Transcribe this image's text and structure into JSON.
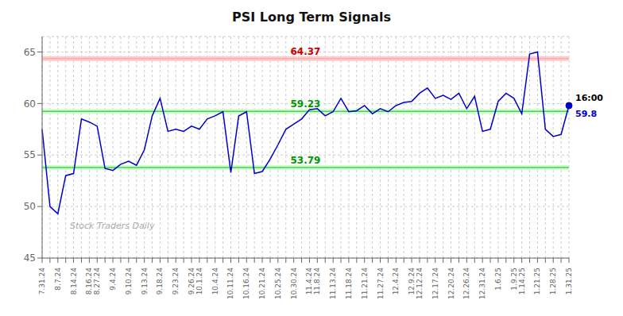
{
  "chart_data": {
    "type": "line",
    "title": "PSI Long Term Signals",
    "watermark": "Stock Traders Daily",
    "color": "#0000cc",
    "grid": true,
    "ylim": [
      45,
      66.5
    ],
    "yticks": [
      45,
      50,
      55,
      60,
      65
    ],
    "categories": [
      "7.31.24",
      null,
      "8.7.24",
      null,
      "8.14.24",
      null,
      "8.16.24",
      "8.27.24",
      null,
      "9.4.24",
      null,
      "9.10.24",
      null,
      "9.13.24",
      null,
      "9.18.24",
      null,
      "9.23.24",
      null,
      "9.26.24",
      "10.1.24",
      null,
      "10.4.24",
      null,
      "10.11.24",
      null,
      "10.16.24",
      null,
      "10.21.24",
      null,
      "10.25.24",
      null,
      "10.30.24",
      null,
      "11.4.24",
      "11.8.24",
      null,
      "11.13.24",
      null,
      "11.18.24",
      null,
      "11.21.24",
      null,
      "11.27.24",
      null,
      "12.4.24",
      null,
      "12.9.24",
      "12.12.24",
      null,
      "12.17.24",
      null,
      "12.20.24",
      null,
      "12.26.24",
      null,
      "12.31.24",
      null,
      "1.6.25",
      null,
      "1.9.25",
      "1.14.25",
      null,
      "1.21.25",
      null,
      "1.28.25",
      null,
      "1.31.25"
    ],
    "values": [
      57.5,
      50.0,
      49.3,
      53.0,
      53.2,
      58.5,
      58.2,
      57.8,
      53.7,
      53.5,
      54.1,
      54.4,
      54.0,
      55.5,
      58.8,
      60.5,
      57.3,
      57.5,
      57.3,
      57.8,
      57.5,
      58.5,
      58.8,
      59.2,
      53.3,
      58.79,
      59.2,
      53.2,
      53.4,
      54.6,
      56.0,
      57.5,
      58.0,
      58.5,
      59.4,
      59.5,
      58.8,
      59.2,
      60.5,
      59.2,
      59.3,
      59.8,
      59.0,
      59.5,
      59.2,
      59.8,
      60.1,
      60.2,
      61.0,
      61.5,
      60.5,
      60.8,
      60.4,
      61.0,
      59.5,
      60.7,
      57.3,
      57.5,
      60.2,
      61.0,
      60.5,
      59.0,
      64.8,
      65.0,
      57.5,
      56.8,
      57.0,
      59.8
    ],
    "reference_lines": [
      {
        "value": 64.37,
        "label": "64.37",
        "color": "#ffaaaa",
        "band_color": "#ffcccc",
        "label_color": "#cc0000"
      },
      {
        "value": 59.23,
        "label": "59.23",
        "color": "#55cc55",
        "band_color": "#ccffcc",
        "label_color": "#009900"
      },
      {
        "value": 53.79,
        "label": "53.79",
        "color": "#55cc55",
        "band_color": "#ccffcc",
        "label_color": "#009900"
      }
    ],
    "last_point": {
      "label": "16:00",
      "value": 59.8
    }
  }
}
